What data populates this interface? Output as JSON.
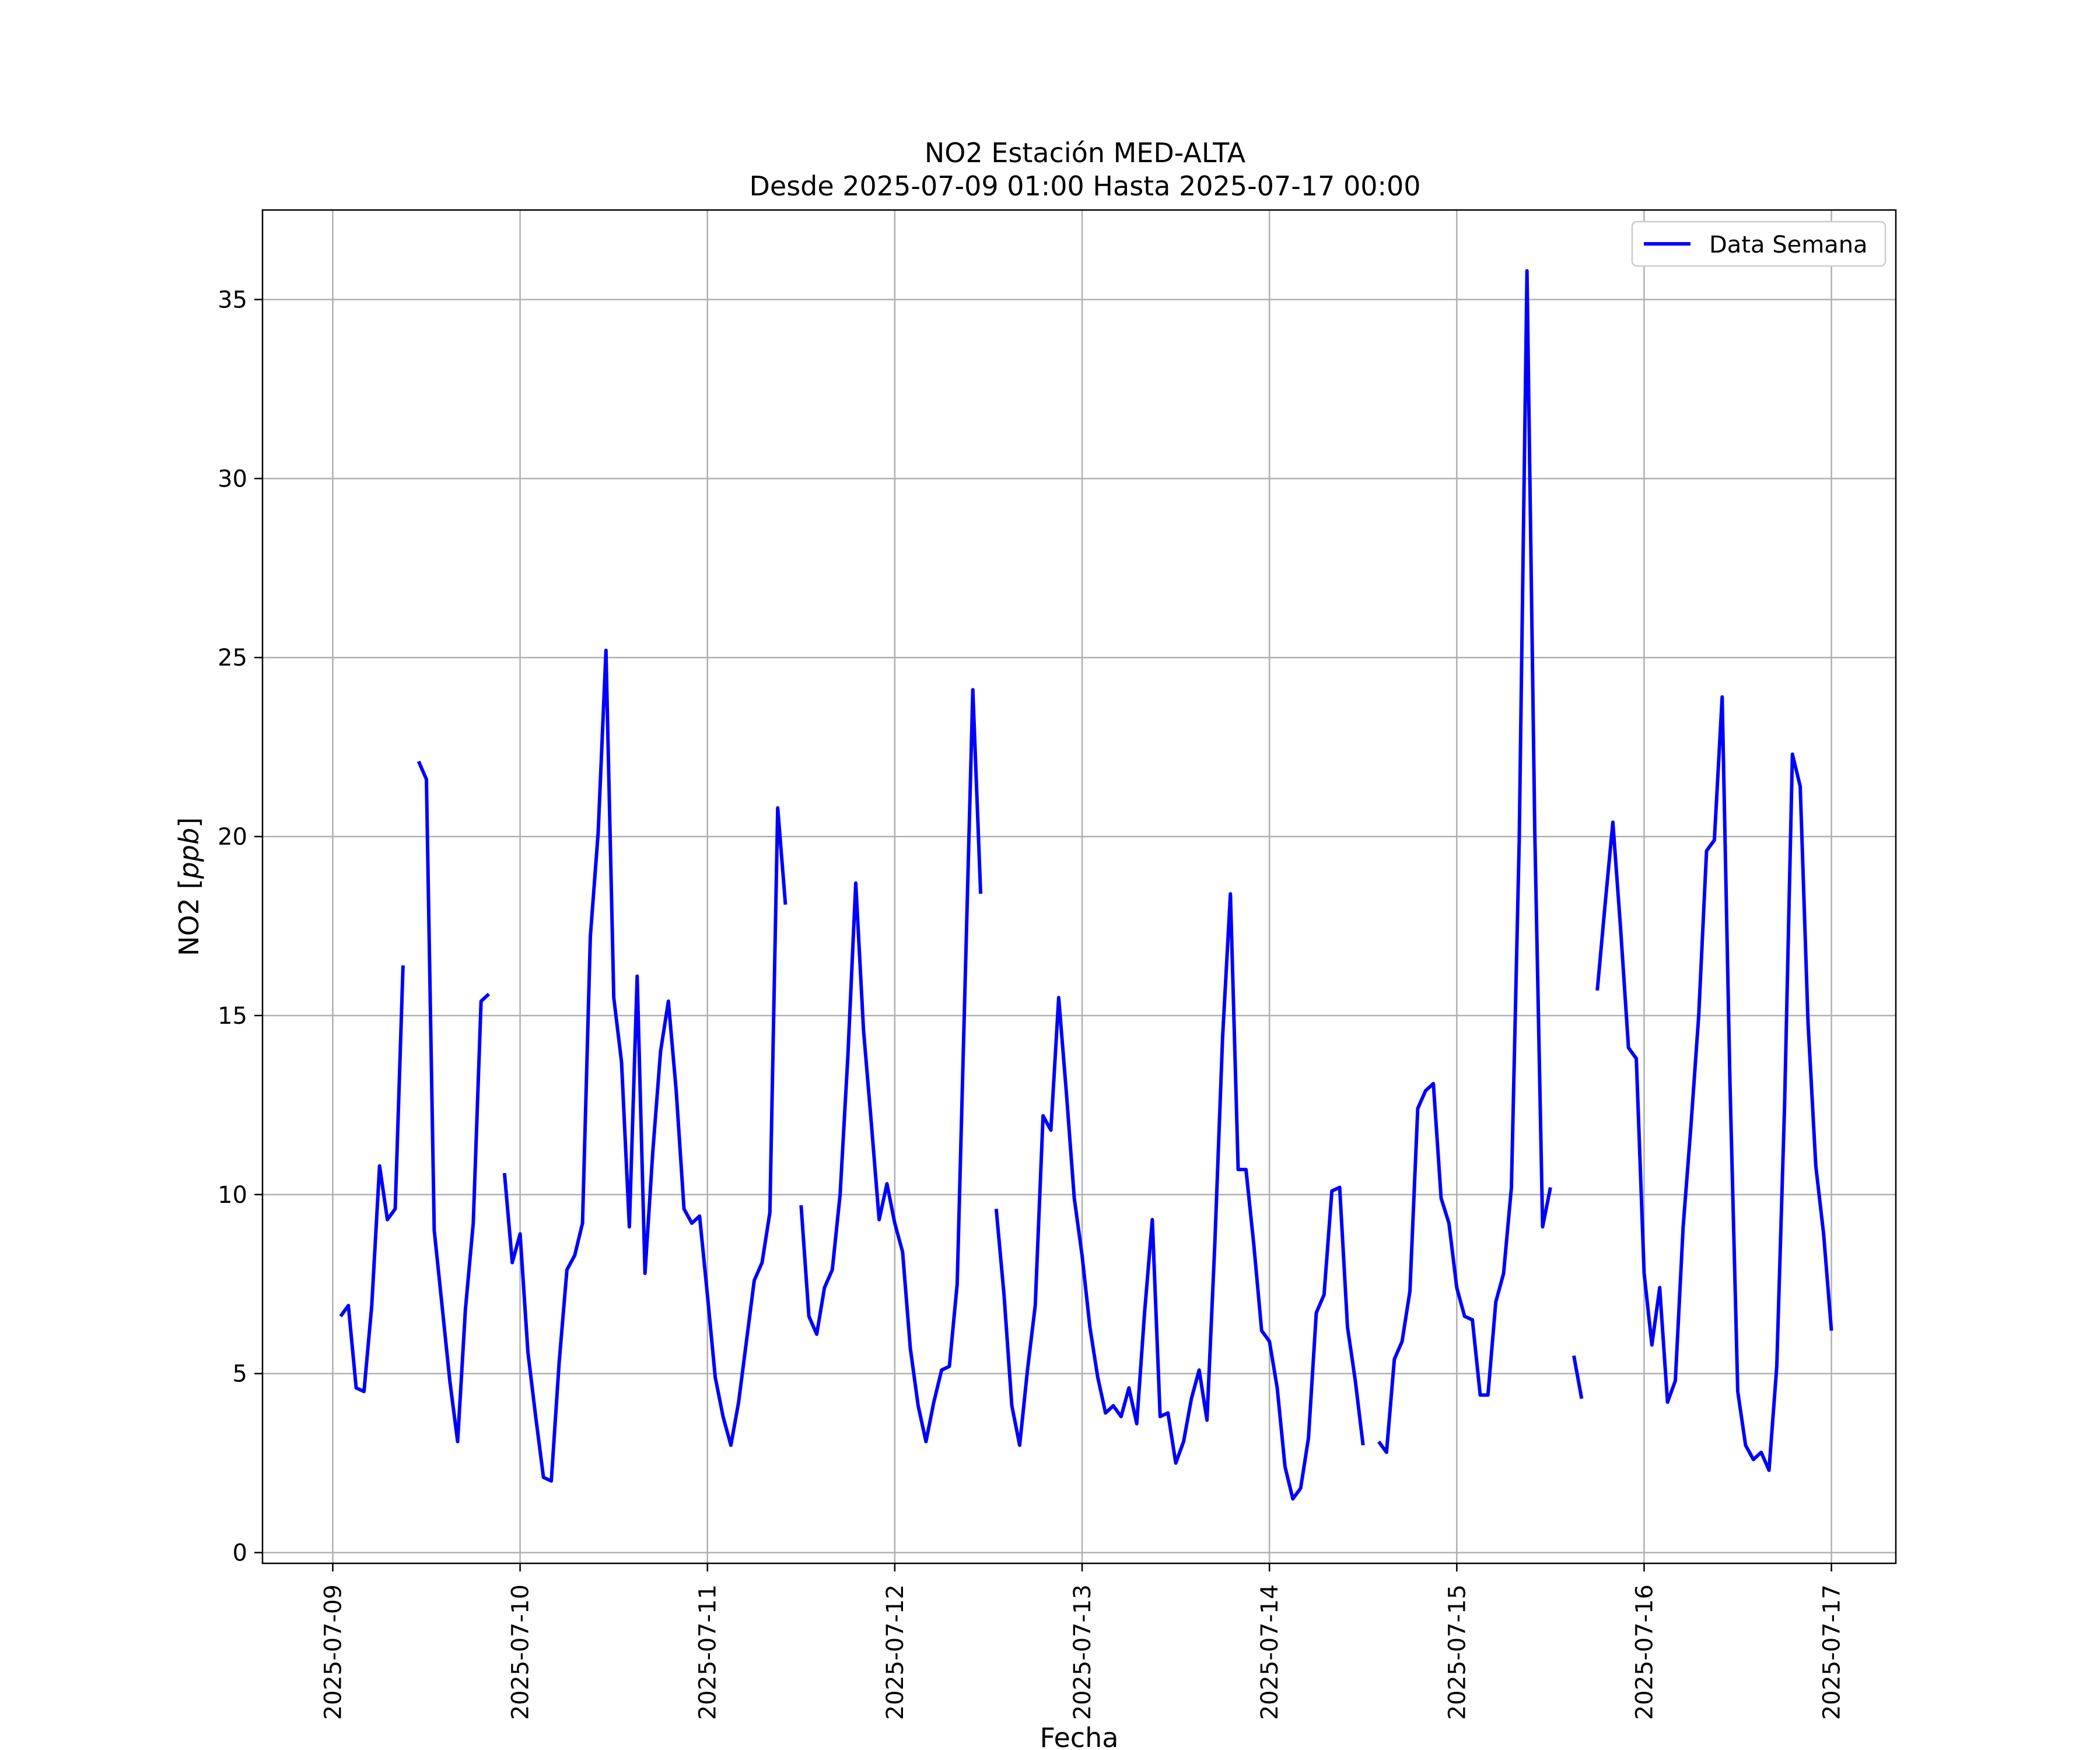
{
  "chart_data": {
    "type": "line",
    "title": "NO2 Estación MED-ALTA",
    "subtitle": "Desde 2025-07-09 01:00 Hasta 2025-07-17 00:00",
    "xlabel": "Fecha",
    "ylabel": "NO2 [ppb]",
    "ylabel_unit": "ppb",
    "ylim": [
      -0.3,
      37.5
    ],
    "xlim": [
      "2025-07-08 15:00",
      "2025-07-17 08:15"
    ],
    "x_ticks": [
      "2025-07-09",
      "2025-07-10",
      "2025-07-11",
      "2025-07-12",
      "2025-07-13",
      "2025-07-14",
      "2025-07-15",
      "2025-07-16",
      "2025-07-17"
    ],
    "y_ticks": [
      0,
      5,
      10,
      15,
      20,
      25,
      30,
      35
    ],
    "grid": true,
    "legend_position": "top-right",
    "series": [
      {
        "name": "Data Semana",
        "color": "#0000ff",
        "segments": [
          {
            "x": [
              "2025-07-09 01:00",
              "2025-07-09 02:00",
              "2025-07-09 03:00",
              "2025-07-09 04:00",
              "2025-07-09 05:00",
              "2025-07-09 06:00",
              "2025-07-09 07:00",
              "2025-07-09 08:00",
              "2025-07-09 09:00"
            ],
            "y": [
              6.6,
              6.9,
              4.6,
              4.5,
              6.9,
              10.8,
              9.3,
              9.6,
              16.4
            ]
          },
          {
            "x": [
              "2025-07-09 11:00",
              "2025-07-09 12:00",
              "2025-07-09 13:00",
              "2025-07-09 14:00",
              "2025-07-09 15:00",
              "2025-07-09 16:00",
              "2025-07-09 17:00",
              "2025-07-09 18:00",
              "2025-07-09 19:00",
              "2025-07-09 20:00"
            ],
            "y": [
              22.1,
              21.6,
              9.0,
              6.9,
              4.8,
              3.1,
              6.8,
              9.2,
              15.4,
              15.6
            ]
          },
          {
            "x": [
              "2025-07-09 22:00",
              "2025-07-09 23:00",
              "2025-07-10 00:00",
              "2025-07-10 01:00",
              "2025-07-10 02:00",
              "2025-07-10 03:00",
              "2025-07-10 04:00",
              "2025-07-10 05:00",
              "2025-07-10 06:00",
              "2025-07-10 07:00",
              "2025-07-10 08:00",
              "2025-07-10 09:00",
              "2025-07-10 10:00",
              "2025-07-10 11:00",
              "2025-07-10 12:00",
              "2025-07-10 13:00",
              "2025-07-10 14:00",
              "2025-07-10 15:00",
              "2025-07-10 16:00",
              "2025-07-10 17:00",
              "2025-07-10 18:00",
              "2025-07-10 19:00",
              "2025-07-10 20:00",
              "2025-07-10 21:00",
              "2025-07-10 22:00",
              "2025-07-10 23:00",
              "2025-07-11 00:00",
              "2025-07-11 01:00",
              "2025-07-11 02:00",
              "2025-07-11 03:00",
              "2025-07-11 04:00",
              "2025-07-11 05:00",
              "2025-07-11 06:00",
              "2025-07-11 07:00",
              "2025-07-11 08:00",
              "2025-07-11 09:00",
              "2025-07-11 10:00"
            ],
            "y": [
              10.6,
              8.1,
              8.9,
              5.6,
              3.8,
              2.1,
              2.0,
              5.3,
              7.9,
              8.3,
              9.2,
              17.2,
              20.1,
              25.2,
              15.5,
              13.7,
              9.1,
              16.1,
              7.8,
              11.2,
              14.0,
              15.4,
              12.9,
              9.6,
              9.2,
              9.4,
              7.2,
              4.9,
              3.8,
              3.0,
              4.2,
              5.9,
              7.6,
              8.1,
              9.5,
              20.8,
              18.1
            ]
          },
          {
            "x": [
              "2025-07-11 12:00",
              "2025-07-11 13:00",
              "2025-07-11 14:00",
              "2025-07-11 15:00",
              "2025-07-11 16:00",
              "2025-07-11 17:00",
              "2025-07-11 18:00",
              "2025-07-11 19:00",
              "2025-07-11 20:00",
              "2025-07-11 21:00",
              "2025-07-11 22:00",
              "2025-07-11 23:00",
              "2025-07-12 00:00",
              "2025-07-12 01:00",
              "2025-07-12 02:00",
              "2025-07-12 03:00",
              "2025-07-12 04:00",
              "2025-07-12 05:00",
              "2025-07-12 06:00",
              "2025-07-12 07:00",
              "2025-07-12 08:00",
              "2025-07-12 09:00",
              "2025-07-12 10:00",
              "2025-07-12 11:00"
            ],
            "y": [
              9.7,
              6.6,
              6.1,
              7.4,
              7.9,
              10.0,
              13.9,
              18.7,
              14.6,
              12.0,
              9.3,
              10.3,
              9.2,
              8.4,
              5.7,
              4.1,
              3.1,
              4.2,
              5.1,
              5.2,
              7.5,
              15.8,
              24.1,
              18.4
            ]
          },
          {
            "x": [
              "2025-07-12 13:00",
              "2025-07-12 14:00",
              "2025-07-12 15:00",
              "2025-07-12 16:00",
              "2025-07-12 17:00",
              "2025-07-12 18:00",
              "2025-07-12 19:00",
              "2025-07-12 20:00",
              "2025-07-12 21:00",
              "2025-07-12 22:00",
              "2025-07-12 23:00",
              "2025-07-13 00:00",
              "2025-07-13 01:00",
              "2025-07-13 02:00",
              "2025-07-13 03:00",
              "2025-07-13 04:00",
              "2025-07-13 05:00",
              "2025-07-13 06:00",
              "2025-07-13 07:00",
              "2025-07-13 08:00",
              "2025-07-13 09:00",
              "2025-07-13 10:00",
              "2025-07-13 11:00",
              "2025-07-13 12:00",
              "2025-07-13 13:00",
              "2025-07-13 14:00",
              "2025-07-13 15:00",
              "2025-07-13 16:00",
              "2025-07-13 17:00",
              "2025-07-13 18:00",
              "2025-07-13 19:00",
              "2025-07-13 20:00",
              "2025-07-13 21:00",
              "2025-07-13 22:00",
              "2025-07-13 23:00",
              "2025-07-14 00:00",
              "2025-07-14 01:00",
              "2025-07-14 02:00",
              "2025-07-14 03:00",
              "2025-07-14 04:00",
              "2025-07-14 05:00",
              "2025-07-14 06:00",
              "2025-07-14 07:00",
              "2025-07-14 08:00",
              "2025-07-14 09:00",
              "2025-07-14 10:00",
              "2025-07-14 11:00",
              "2025-07-14 12:00"
            ],
            "y": [
              9.6,
              7.2,
              4.1,
              3.0,
              5.1,
              6.9,
              12.2,
              11.8,
              15.5,
              12.8,
              9.9,
              8.3,
              6.3,
              4.9,
              3.9,
              4.1,
              3.8,
              4.6,
              3.6,
              6.7,
              9.3,
              3.8,
              3.9,
              2.5,
              3.1,
              4.3,
              5.1,
              3.7,
              8.6,
              14.4,
              18.4,
              10.7,
              10.7,
              8.6,
              6.2,
              5.9,
              4.6,
              2.4,
              1.5,
              1.8,
              3.2,
              6.7,
              7.2,
              10.1,
              10.2,
              6.3,
              4.8,
              3.0
            ]
          },
          {
            "x": [
              "2025-07-14 14:00",
              "2025-07-14 15:00",
              "2025-07-14 16:00",
              "2025-07-14 17:00",
              "2025-07-14 18:00",
              "2025-07-14 19:00",
              "2025-07-14 20:00",
              "2025-07-14 21:00",
              "2025-07-14 22:00",
              "2025-07-14 23:00",
              "2025-07-15 00:00",
              "2025-07-15 01:00",
              "2025-07-15 02:00",
              "2025-07-15 03:00",
              "2025-07-15 04:00",
              "2025-07-15 05:00",
              "2025-07-15 06:00",
              "2025-07-15 07:00",
              "2025-07-15 08:00",
              "2025-07-15 09:00",
              "2025-07-15 10:00",
              "2025-07-15 11:00",
              "2025-07-15 12:00",
              "2025-07-15 13:00"
            ],
            "y": [
              3.1,
              2.8,
              5.4,
              5.9,
              7.3,
              12.4,
              12.9,
              13.1,
              9.9,
              9.2,
              7.4,
              6.6,
              6.5,
              4.4,
              4.4,
              7.0,
              7.8,
              10.2,
              19.9,
              35.8,
              20.1,
              9.1,
              10.2,
              null
            ]
          },
          {
            "x": [
              "2025-07-15 15:00",
              "2025-07-15 16:00"
            ],
            "y": [
              5.5,
              4.3
            ]
          },
          {
            "x": [
              "2025-07-15 18:00",
              "2025-07-15 19:00",
              "2025-07-15 20:00",
              "2025-07-15 21:00",
              "2025-07-15 22:00",
              "2025-07-15 23:00",
              "2025-07-16 00:00",
              "2025-07-16 01:00",
              "2025-07-16 02:00",
              "2025-07-16 03:00",
              "2025-07-16 04:00",
              "2025-07-16 05:00",
              "2025-07-16 06:00",
              "2025-07-16 07:00",
              "2025-07-16 08:00",
              "2025-07-16 09:00",
              "2025-07-16 10:00",
              "2025-07-16 11:00",
              "2025-07-16 12:00",
              "2025-07-16 13:00",
              "2025-07-16 14:00",
              "2025-07-16 15:00",
              "2025-07-16 16:00",
              "2025-07-16 17:00",
              "2025-07-16 18:00",
              "2025-07-16 19:00",
              "2025-07-16 20:00",
              "2025-07-16 21:00",
              "2025-07-16 22:00",
              "2025-07-16 23:00",
              "2025-07-17 00:00"
            ],
            "y": [
              15.7,
              18.1,
              20.4,
              17.4,
              14.1,
              13.8,
              7.8,
              5.8,
              7.4,
              4.2,
              4.8,
              9.1,
              11.9,
              15.0,
              19.6,
              19.9,
              23.9,
              13.1,
              4.5,
              3.0,
              2.6,
              2.8,
              2.3,
              5.2,
              12.5,
              22.3,
              21.4,
              14.8,
              10.8,
              8.9,
              6.2
            ]
          }
        ]
      }
    ]
  }
}
